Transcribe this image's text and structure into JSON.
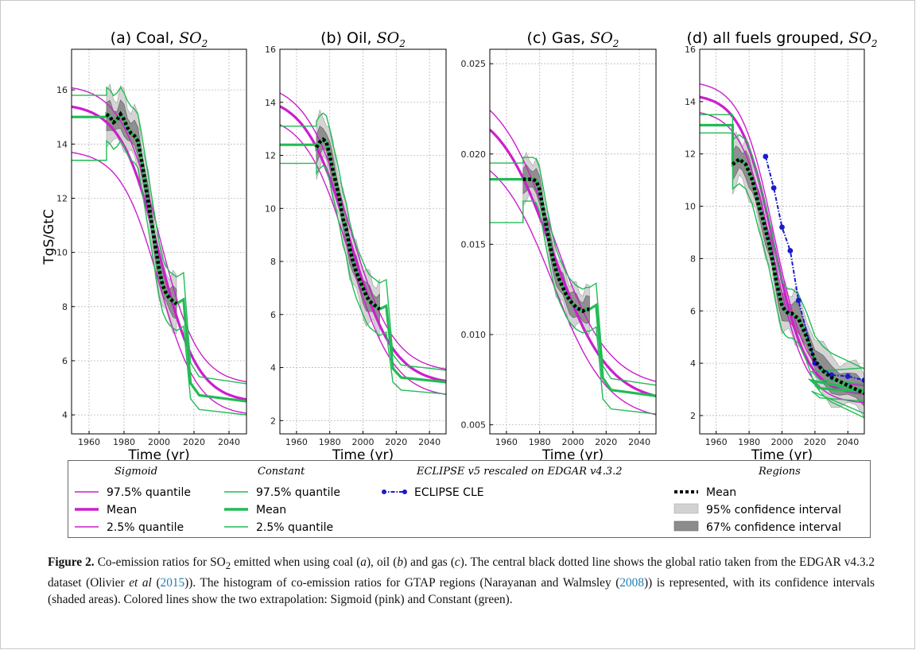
{
  "figure": {
    "ylabel": "TgS/GtC",
    "colors": {
      "sigmoid": "#cc1fcc",
      "constant": "#22bb55",
      "eclipse": "#1a1acc",
      "ci95": "#d2d2d2",
      "ci67": "#8c8c8c",
      "mean": "#000000"
    }
  },
  "chart_data": [
    {
      "type": "line",
      "title_text": "(a) Coal, ",
      "title_math": "SO",
      "title_sub": "2",
      "xlabel": "Time (yr)",
      "xlim": [
        1950,
        2050
      ],
      "ylim": [
        3.3,
        17.5
      ],
      "yticks": [
        4,
        6,
        8,
        10,
        12,
        14,
        16
      ],
      "xticks": [
        1960,
        1980,
        2000,
        2020,
        2040
      ],
      "sigmoid": {
        "upper": 16.2,
        "mean": 15.5,
        "lower": 13.8,
        "end_upper": 5.1,
        "end_mean": 4.45,
        "end_lower": 3.95,
        "mid": 2000,
        "k": 0.09
      },
      "constant": {
        "upper": 15.8,
        "mean": 15.0,
        "lower": 13.4,
        "end_upper": 5.15,
        "end_mean": 4.5,
        "end_lower": 4.0,
        "drop_year": 2018
      },
      "regional_mean": {
        "x": [
          1970,
          1972,
          1974,
          1976,
          1978,
          1980,
          1982,
          1984,
          1986,
          1988,
          1990,
          1992,
          1994,
          1996,
          1998,
          2000,
          2002,
          2004,
          2006,
          2008,
          2010
        ],
        "y": [
          15.1,
          15.0,
          14.8,
          14.9,
          15.1,
          14.9,
          14.6,
          14.4,
          14.3,
          14.1,
          13.4,
          12.6,
          11.8,
          11.0,
          10.2,
          9.4,
          8.8,
          8.5,
          8.3,
          8.2,
          8.1
        ]
      },
      "ci67_halfwidth": 0.45,
      "ci95_halfwidth": 0.9
    },
    {
      "type": "line",
      "title_text": "(b) Oil, ",
      "title_math": "SO",
      "title_sub": "2",
      "xlabel": "Time (yr)",
      "xlim": [
        1950,
        2050
      ],
      "ylim": [
        1.5,
        16.0
      ],
      "yticks": [
        2,
        4,
        6,
        8,
        10,
        12,
        14,
        16
      ],
      "xticks": [
        1960,
        1980,
        2000,
        2020,
        2040
      ],
      "sigmoid": {
        "upper": 14.8,
        "mean": 14.3,
        "lower": 13.6,
        "end_upper": 3.8,
        "end_mean": 3.35,
        "end_lower": 2.85,
        "mid": 1992,
        "k": 0.075
      },
      "constant": {
        "upper": 13.1,
        "mean": 12.4,
        "lower": 11.7,
        "end_upper": 3.9,
        "end_mean": 3.45,
        "end_lower": 3.0,
        "drop_year": 2018
      },
      "regional_mean": {
        "x": [
          1972,
          1974,
          1976,
          1978,
          1980,
          1982,
          1984,
          1986,
          1988,
          1990,
          1992,
          1994,
          1996,
          1998,
          2000,
          2002,
          2004,
          2006,
          2008,
          2010
        ],
        "y": [
          12.3,
          12.5,
          12.6,
          12.5,
          12.0,
          11.4,
          10.9,
          10.3,
          9.6,
          9.2,
          8.5,
          8.0,
          7.6,
          7.3,
          7.0,
          6.7,
          6.5,
          6.4,
          6.3,
          6.2
        ]
      },
      "ci67_halfwidth": 0.45,
      "ci95_halfwidth": 0.9
    },
    {
      "type": "line",
      "title_text": "(c) Gas, ",
      "title_math": "SO",
      "title_sub": "2",
      "xlabel": "Time (yr)",
      "xlim": [
        1950,
        2050
      ],
      "ylim": [
        0.0045,
        0.0258
      ],
      "yticks": [
        0.005,
        0.01,
        0.015,
        0.02,
        0.025
      ],
      "ytick_labels": [
        "0.005",
        "0.010",
        "0.015",
        "0.020",
        "0.025"
      ],
      "xticks": [
        1960,
        1980,
        2000,
        2020,
        2040
      ],
      "sigmoid": {
        "upper": 0.024,
        "mean": 0.0229,
        "lower": 0.0205,
        "end_upper": 0.007,
        "end_mean": 0.0062,
        "end_lower": 0.0052,
        "mid": 1988,
        "k": 0.06
      },
      "constant": {
        "upper": 0.0195,
        "mean": 0.0186,
        "lower": 0.0162,
        "end_upper": 0.0072,
        "end_mean": 0.0066,
        "end_lower": 0.0056,
        "drop_year": 2018
      },
      "regional_mean": {
        "x": [
          1970,
          1972,
          1974,
          1976,
          1978,
          1980,
          1982,
          1984,
          1986,
          1988,
          1990,
          1992,
          1994,
          1996,
          1998,
          2000,
          2002,
          2004,
          2006,
          2008,
          2010
        ],
        "y": [
          0.0186,
          0.0186,
          0.0186,
          0.0186,
          0.0185,
          0.018,
          0.017,
          0.016,
          0.015,
          0.0142,
          0.0135,
          0.013,
          0.0126,
          0.0122,
          0.0119,
          0.0117,
          0.0115,
          0.0114,
          0.0113,
          0.0114,
          0.0114
        ]
      },
      "ci67_halfwidth": 0.0006,
      "ci95_halfwidth": 0.0011
    },
    {
      "type": "line",
      "title_text": "(d) all fuels grouped, ",
      "title_math": "SO",
      "title_sub": "2",
      "xlabel": "Time (yr)",
      "xlim": [
        1950,
        2050
      ],
      "ylim": [
        1.3,
        16.0
      ],
      "yticks": [
        2,
        4,
        6,
        8,
        10,
        12,
        14,
        16
      ],
      "xticks": [
        1960,
        1980,
        2000,
        2020,
        2040
      ],
      "sigmoid": {
        "upper": 14.8,
        "mean": 14.3,
        "lower": 13.7,
        "end_upper": 3.1,
        "end_mean": 2.8,
        "end_lower": 2.45,
        "mid": 1995,
        "k": 0.1
      },
      "constant": {
        "upper": 13.5,
        "mean": 13.1,
        "lower": 12.8,
        "end_upper": 3.2,
        "end_mean": 2.9,
        "end_lower": 2.55,
        "drop_year": 2018
      },
      "regional_mean": {
        "x": [
          1970,
          1972,
          1974,
          1976,
          1978,
          1980,
          1982,
          1984,
          1986,
          1988,
          1990,
          1992,
          1994,
          1996,
          1998,
          2000,
          2002,
          2004,
          2006,
          2008,
          2010,
          2015,
          2020,
          2025,
          2030,
          2035,
          2040,
          2045,
          2050
        ],
        "y": [
          11.6,
          11.7,
          11.8,
          11.7,
          11.6,
          11.3,
          11.0,
          10.5,
          10.0,
          9.6,
          9.1,
          8.6,
          8.0,
          7.3,
          6.7,
          6.2,
          6.0,
          5.9,
          5.9,
          5.8,
          5.7,
          5.0,
          4.1,
          3.7,
          3.45,
          3.3,
          3.15,
          3.0,
          2.85
        ]
      },
      "eclipse": {
        "x": [
          1990,
          1995,
          2000,
          2005,
          2010,
          2020,
          2030,
          2040,
          2050
        ],
        "y": [
          11.9,
          10.7,
          9.2,
          8.3,
          6.4,
          4.0,
          3.55,
          3.5,
          3.35
        ]
      },
      "ci67_halfwidth": 0.45,
      "ci95_halfwidth": 0.85
    }
  ],
  "legend": {
    "sigmoid_head": "Sigmoid",
    "constant_head": "Constant",
    "eclipse_head": "ECLIPSE v5 rescaled on EDGAR v4.3.2",
    "regions_head": "Regions",
    "sig_upper": "97.5% quantile",
    "sig_mean": "Mean",
    "sig_lower": "2.5% quantile",
    "con_upper": "97.5% quantile",
    "con_mean": "Mean",
    "con_lower": "2.5% quantile",
    "eclipse": "ECLIPSE CLE",
    "reg_mean": "Mean",
    "reg_ci95": "95% confidence interval",
    "reg_ci67": "67% confidence interval"
  },
  "caption": {
    "label": "Figure 2.",
    "t1": " Co-emission ratios for SO",
    "sub": "2",
    "t2": " emitted when using coal (",
    "a": "a",
    "t3": "), oil (",
    "b": "b",
    "t4": ") and gas (",
    "c": "c",
    "t5": "). The central black dotted line shows the global ratio taken from the EDGAR v4.3.2 dataset (Olivier ",
    "etal1": "et al",
    "t6": " (",
    "ref1": "2015",
    "t7": ")). The histogram of co-emission ratios for GTAP regions (Narayanan and Walmsley (",
    "ref2": "2008",
    "t8": ")) is represented, with its confidence intervals (shaded areas). Colored lines show the two extrapolation: Sigmoid (pink) and Constant (green)."
  }
}
